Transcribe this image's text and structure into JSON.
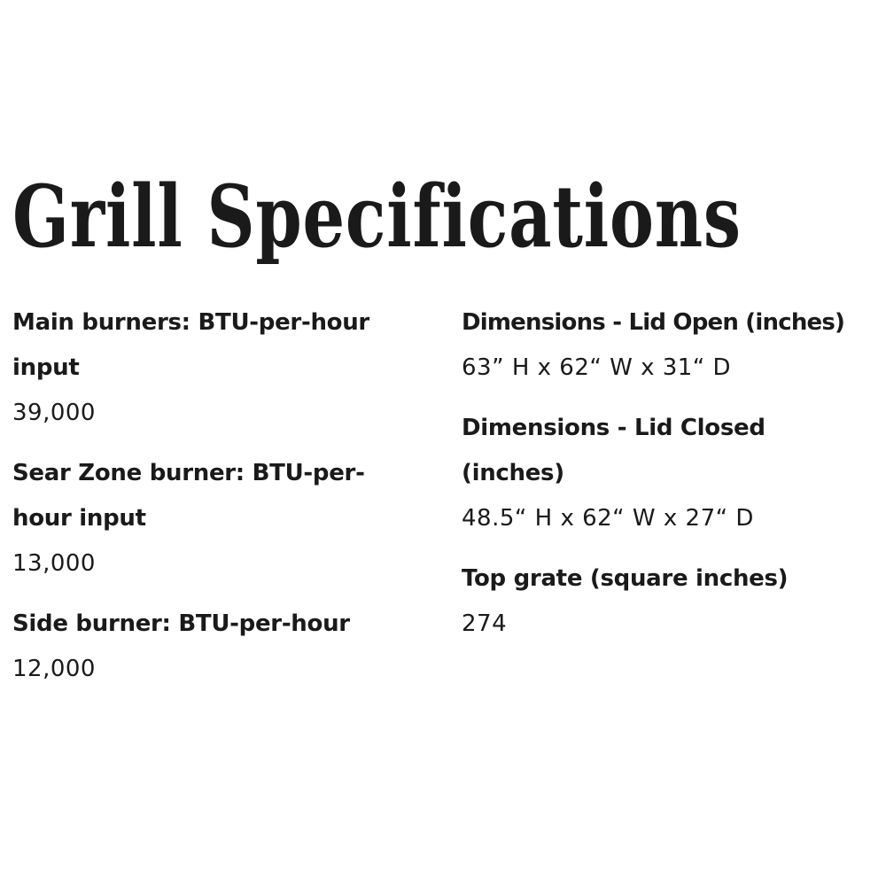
{
  "title": "Grill Specifications",
  "left_specs": [
    {
      "label": "Main burners: BTU-per-hour input",
      "value": "39,000"
    },
    {
      "label": "Sear Zone burner: BTU-per-hour input",
      "value": "13,000"
    },
    {
      "label": "Side burner: BTU-per-hour",
      "value": "12,000"
    }
  ],
  "right_specs": [
    {
      "label": "Dimensions - Lid Open (inches)",
      "value": "63” H x 62“ W x 31“ D"
    },
    {
      "label": "Dimensions - Lid Closed (inches)",
      "value": "48.5“ H x 62“ W x 27“ D"
    },
    {
      "label": "Top grate (square inches)",
      "value": "274"
    }
  ]
}
